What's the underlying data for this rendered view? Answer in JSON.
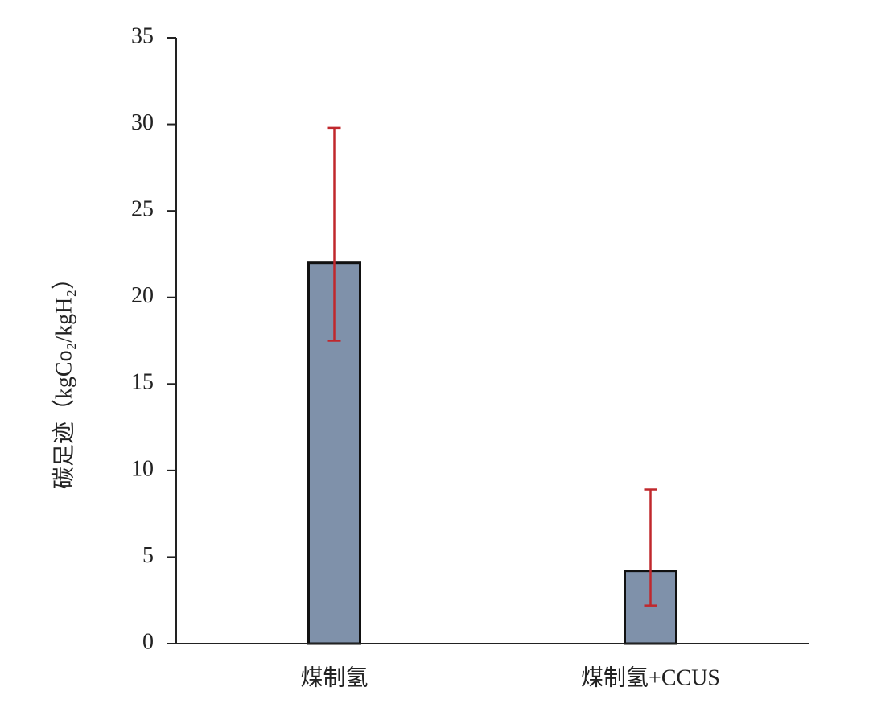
{
  "chart_data": {
    "type": "bar",
    "y_label": "碳足迹（kgCo₂/kgH₂）",
    "categories": [
      "煤制氢",
      "煤制氢+CCUS"
    ],
    "values": [
      22,
      4.2
    ],
    "error_low": [
      17.5,
      2.2
    ],
    "error_high": [
      29.8,
      8.9
    ],
    "color": "#7f91aa",
    "error_color": "#c0282d",
    "ylim": [
      0,
      35
    ],
    "yticks": [
      0,
      5,
      10,
      15,
      20,
      25,
      30,
      35
    ],
    "grid": false
  }
}
